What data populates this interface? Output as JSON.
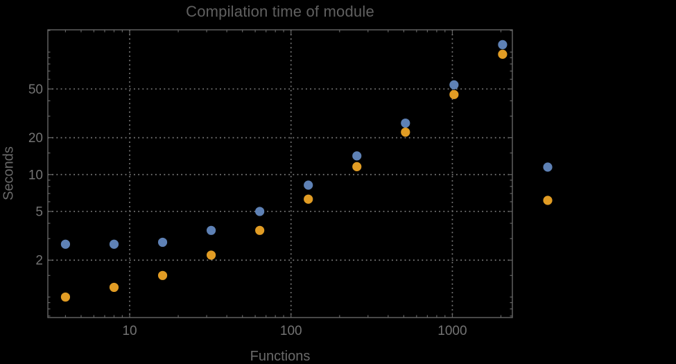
{
  "chart_data": {
    "type": "scatter",
    "title": "Compilation time of module",
    "xlabel": "Functions",
    "ylabel": "Seconds",
    "x_scale": "log",
    "y_scale": "log",
    "xlim": [
      3.11,
      2355
    ],
    "ylim": [
      0.68,
      152
    ],
    "x": [
      4,
      8,
      16,
      32,
      64,
      128,
      256,
      512,
      1024,
      2048
    ],
    "series": [
      {
        "name": "series-1",
        "color": "#5E81B5",
        "values": [
          2.7,
          2.7,
          2.8,
          3.5,
          5.0,
          8.2,
          14.2,
          26.3,
          54,
          115
        ]
      },
      {
        "name": "series-2",
        "color": "#E19C24",
        "values": [
          1.0,
          1.2,
          1.5,
          2.2,
          3.5,
          6.3,
          11.6,
          22.2,
          45,
          96
        ]
      }
    ],
    "x_axis": {
      "major_ticks": [
        10,
        100,
        1000
      ],
      "major_labels": [
        "10",
        "100",
        "1000"
      ],
      "minor_ticks": [
        4,
        5,
        6,
        7,
        8,
        9,
        20,
        30,
        40,
        50,
        60,
        70,
        80,
        90,
        200,
        300,
        400,
        500,
        600,
        700,
        800,
        900,
        2000
      ]
    },
    "y_axis": {
      "major_ticks": [
        2,
        5,
        10,
        20,
        50
      ],
      "major_labels": [
        "2",
        "5",
        "10",
        "20",
        "50"
      ],
      "minor_ticks": [
        0.7,
        0.8,
        0.9,
        1,
        1.5,
        3,
        4,
        6,
        7,
        8,
        9,
        15,
        30,
        40,
        60,
        70,
        80,
        90,
        100,
        150
      ]
    },
    "grid": {
      "x_values": [
        10,
        100,
        1000
      ],
      "y_values": [
        2,
        5,
        10,
        20,
        50
      ],
      "style": "dotted",
      "color": "#7d7d7d"
    },
    "legend": {
      "position": "right-outside",
      "markers": [
        {
          "series": "series-1",
          "color": "#5E81B5",
          "label": ""
        },
        {
          "series": "series-2",
          "color": "#E19C24",
          "label": ""
        }
      ]
    },
    "frame_color": "#666666",
    "background": "#000000",
    "text_colors": {
      "title": "#606060",
      "tick_labels": "#737373",
      "axis_labels": "#6a6a6a"
    }
  }
}
